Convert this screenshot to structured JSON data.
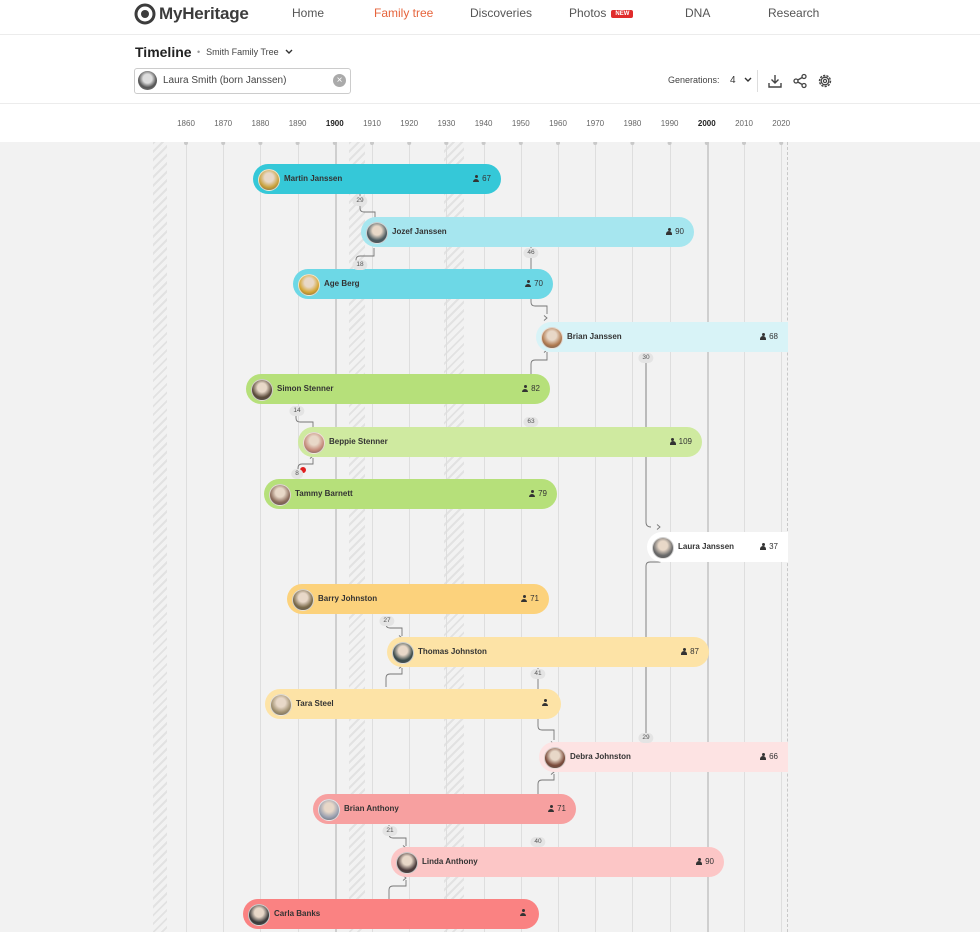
{
  "brand": {
    "name": "MyHeritage"
  },
  "nav": {
    "home": "Home",
    "family_tree": "Family tree",
    "discoveries": "Discoveries",
    "photos": "Photos",
    "photos_badge": "NEW",
    "dna": "DNA",
    "research": "Research"
  },
  "header": {
    "title": "Timeline",
    "tree_name": "Smith Family Tree",
    "search_value": "Laura Smith (born Janssen)",
    "generations_label": "Generations:",
    "generations_value": "4"
  },
  "timeline_years": [
    "1860",
    "1870",
    "1880",
    "1890",
    "1900",
    "1910",
    "1920",
    "1930",
    "1940",
    "1950",
    "1960",
    "1970",
    "1980",
    "1990",
    "2000",
    "2010",
    "2020"
  ],
  "bold_years": [
    "1900",
    "2000"
  ],
  "people": [
    {
      "name": "Martin Janssen",
      "age": "67"
    },
    {
      "name": "Jozef Janssen",
      "age": "90"
    },
    {
      "name": "Age Berg",
      "age": "70"
    },
    {
      "name": "Brian Janssen",
      "age": "68"
    },
    {
      "name": "Simon Stenner",
      "age": "82"
    },
    {
      "name": "Beppie Stenner",
      "age": "109"
    },
    {
      "name": "Tammy Barnett",
      "age": "79"
    },
    {
      "name": "Laura Janssen",
      "age": "37"
    },
    {
      "name": "Barry Johnston",
      "age": "71"
    },
    {
      "name": "Thomas Johnston",
      "age": "87"
    },
    {
      "name": "Tara Steel",
      "age": ""
    },
    {
      "name": "Debra Johnston",
      "age": "66"
    },
    {
      "name": "Brian Anthony",
      "age": "71"
    },
    {
      "name": "Linda Anthony",
      "age": "90"
    },
    {
      "name": "Carla Banks",
      "age": ""
    }
  ],
  "parent_age_labels": [
    "29",
    "18",
    "46",
    "30",
    "14",
    "63",
    "8",
    "27",
    "41",
    "29",
    "21",
    "40"
  ],
  "colors": {
    "accent": "#e6643c",
    "teal_dark": "#35c8d8",
    "teal_mid": "#6dd8e6",
    "teal_light": "#a6e6ef",
    "teal_pale": "#d8f3f7",
    "green_dark": "#b6e07a",
    "green_light": "#cfeaa0",
    "yellow_dark": "#fcd27c",
    "yellow_light": "#fde3a6",
    "pink_light": "#fde3e3",
    "red_mid": "#f7a0a0",
    "red_light": "#fcc6c6",
    "red_dark": "#fa8282"
  },
  "icons": [
    "download-icon",
    "share-icon",
    "settings-icon",
    "chevron-down-icon",
    "person-icon",
    "clear-icon"
  ]
}
